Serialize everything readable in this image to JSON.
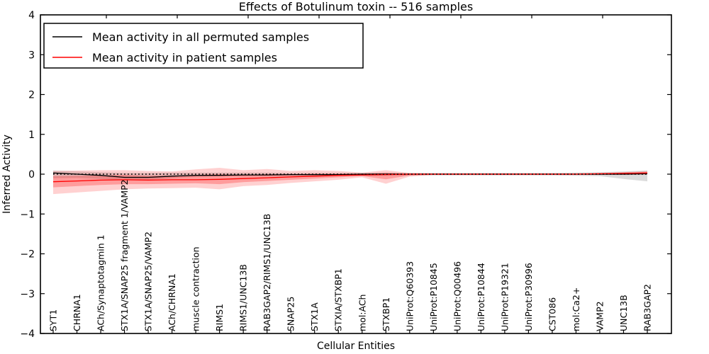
{
  "chart_data": {
    "type": "line",
    "title": "Effects of Botulinum toxin -- 516 samples",
    "xlabel": "Cellular Entities",
    "ylabel": "Inferred Activity",
    "ylim": [
      -4,
      4
    ],
    "y_tick_values": [
      4,
      3,
      2,
      1,
      0,
      -1,
      -2,
      -3,
      -4
    ],
    "y_tick_labels": [
      "4",
      "3",
      "2",
      "1",
      "0",
      "−1",
      "−2",
      "−3",
      "−4"
    ],
    "grid": false,
    "categories": [
      "SYT1",
      "CHRNA1",
      "ACh/Synaptotagmin 1",
      "STX1A/SNAP25 fragment 1/VAMP2",
      "STX1A/SNAP25/VAMP2",
      "ACh/CHRNA1",
      "muscle contraction",
      "RIMS1",
      "RIMS1/UNC13B",
      "RAB3GAP2/RIMS1/UNC13B",
      "SNAP25",
      "STX1A",
      "STXIA/STXBP1",
      "mol:ACh",
      "STXBP1",
      "UniProt:Q60393",
      "UniProt:P10845",
      "UniProt:Q00496",
      "UniProt:P10844",
      "UniProt:P19321",
      "UniProt:P30996",
      "CST086",
      "mol:Ca2+",
      "VAMP2",
      "UNC13B",
      "RAB3GAP2"
    ],
    "series": [
      {
        "name": "Mean activity in all permuted samples",
        "color": "#000000",
        "values": [
          0.03,
          0.0,
          -0.03,
          -0.08,
          -0.08,
          -0.05,
          -0.03,
          -0.03,
          -0.02,
          -0.02,
          -0.01,
          -0.01,
          -0.01,
          0,
          0,
          0,
          0,
          0,
          0,
          0,
          0,
          0,
          0,
          0,
          0,
          0.01
        ]
      },
      {
        "name": "Mean activity in patient samples",
        "color": "#ff0000",
        "values": [
          -0.19,
          -0.17,
          -0.15,
          -0.14,
          -0.15,
          -0.14,
          -0.14,
          -0.13,
          -0.11,
          -0.09,
          -0.07,
          -0.05,
          -0.03,
          -0.02,
          -0.01,
          0,
          0,
          0,
          0,
          0,
          0,
          0,
          0,
          0.01,
          0.02,
          0.03
        ]
      }
    ],
    "bands": [
      {
        "name": "permuted-band",
        "color": "#000000",
        "opacity": 0.14,
        "lower": [
          -0.1,
          -0.09,
          -0.12,
          -0.15,
          -0.14,
          -0.1,
          -0.07,
          -0.05,
          -0.05,
          -0.04,
          -0.04,
          -0.04,
          -0.04,
          -0.04,
          -0.04,
          -0.03,
          -0.03,
          -0.03,
          -0.03,
          -0.03,
          -0.03,
          -0.03,
          -0.04,
          -0.05,
          -0.12,
          -0.18
        ],
        "upper": [
          0.09,
          0.07,
          0.05,
          0.03,
          0.03,
          0.04,
          0.04,
          0.04,
          0.04,
          0.04,
          0.03,
          0.03,
          0.03,
          0.03,
          0.03,
          0.03,
          0.03,
          0.03,
          0.03,
          0.03,
          0.03,
          0.03,
          0.04,
          0.05,
          0.07,
          0.09
        ]
      },
      {
        "name": "patient-band-outer",
        "color": "#ff0000",
        "opacity": 0.18,
        "lower": [
          -0.5,
          -0.46,
          -0.42,
          -0.38,
          -0.36,
          -0.35,
          -0.34,
          -0.38,
          -0.3,
          -0.27,
          -0.22,
          -0.18,
          -0.14,
          -0.08,
          -0.24,
          -0.06,
          -0.02,
          -0.02,
          -0.02,
          -0.02,
          -0.02,
          -0.02,
          -0.02,
          -0.02,
          -0.02,
          -0.01
        ],
        "upper": [
          0.08,
          0.09,
          0.1,
          0.1,
          0.08,
          0.07,
          0.12,
          0.16,
          0.1,
          0.13,
          0.08,
          0.1,
          0.08,
          0.04,
          0.1,
          0.03,
          0.02,
          0.02,
          0.02,
          0.02,
          0.02,
          0.02,
          0.02,
          0.03,
          0.05,
          0.08
        ],
        "legend": false
      },
      {
        "name": "patient-band-inner",
        "color": "#ff0000",
        "opacity": 0.25,
        "lower": [
          -0.33,
          -0.3,
          -0.27,
          -0.25,
          -0.25,
          -0.24,
          -0.23,
          -0.25,
          -0.2,
          -0.17,
          -0.14,
          -0.11,
          -0.08,
          -0.05,
          -0.13,
          -0.03,
          -0.01,
          -0.01,
          -0.01,
          -0.01,
          -0.01,
          -0.01,
          -0.01,
          -0.01,
          0.0,
          0.01
        ],
        "upper": [
          -0.05,
          -0.04,
          -0.03,
          -0.02,
          -0.04,
          -0.04,
          -0.02,
          0.0,
          -0.02,
          0.0,
          -0.01,
          0.01,
          0.01,
          0.01,
          0.04,
          0.01,
          0.01,
          0.01,
          0.01,
          0.01,
          0.01,
          0.01,
          0.01,
          0.02,
          0.04,
          0.05
        ],
        "legend": false
      }
    ],
    "zero_line": {
      "value": 0,
      "style": "dotted",
      "color": "#000000"
    },
    "legend": {
      "position": "upper left",
      "entries": [
        {
          "label": "Mean activity in all permuted samples",
          "color": "#000000"
        },
        {
          "label": "Mean activity in patient samples",
          "color": "#ff0000"
        }
      ]
    }
  }
}
